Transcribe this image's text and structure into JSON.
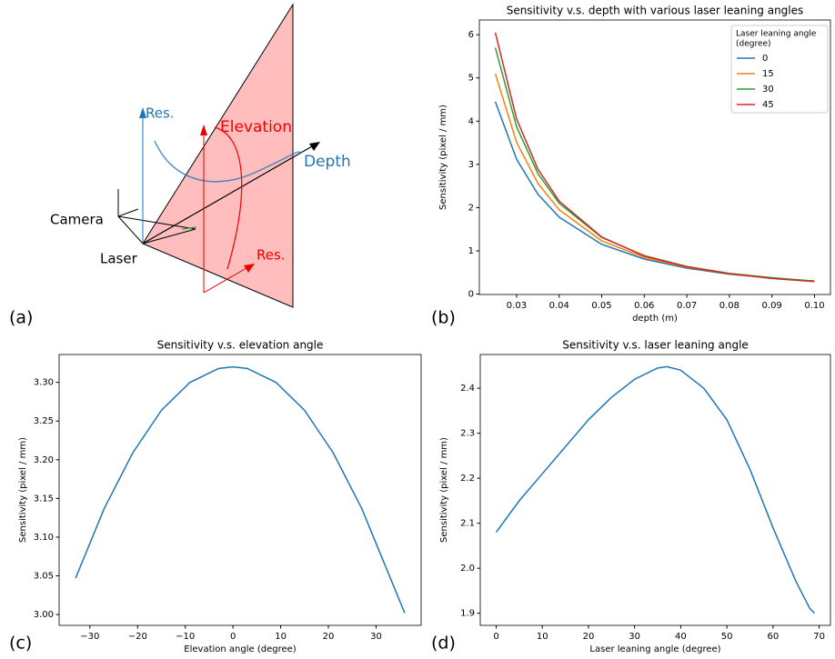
{
  "figure": {
    "panel_labels": [
      "(a)",
      "(b)",
      "(c)",
      "(d)"
    ],
    "diagram": {
      "res_blue": "Res.",
      "elevation": "Elevation",
      "depth": "Depth",
      "camera": "Camera",
      "laser": "Laser",
      "res_red": "Res."
    }
  },
  "chart_data": [
    {
      "type": "line",
      "title": "Sensitivity v.s. depth with various laser leaning angles",
      "xlabel": "depth (m)",
      "ylabel": "Sensitivity (pixel / mm)",
      "x": [
        0.025,
        0.03,
        0.035,
        0.04,
        0.05,
        0.06,
        0.07,
        0.08,
        0.09,
        0.1
      ],
      "series": [
        {
          "name": "0",
          "color": "#1f77b4",
          "values": [
            4.45,
            3.12,
            2.31,
            1.78,
            1.15,
            0.81,
            0.6,
            0.46,
            0.37,
            0.3
          ]
        },
        {
          "name": "15",
          "color": "#ff7f0e",
          "values": [
            5.1,
            3.51,
            2.56,
            1.95,
            1.23,
            0.85,
            0.62,
            0.47,
            0.37,
            0.3
          ]
        },
        {
          "name": "30",
          "color": "#2ca02c",
          "values": [
            5.7,
            3.87,
            2.79,
            2.1,
            1.31,
            0.89,
            0.64,
            0.48,
            0.38,
            0.3
          ]
        },
        {
          "name": "45",
          "color": "#d62728",
          "values": [
            6.05,
            4.05,
            2.89,
            2.15,
            1.32,
            0.88,
            0.63,
            0.47,
            0.36,
            0.29
          ]
        }
      ],
      "legend_title": [
        "Laser leaning angle",
        "(degree)"
      ],
      "legend": "upper right",
      "xlim": [
        0.02125,
        0.10375
      ],
      "ylim": [
        -0.01,
        6.34
      ],
      "xticks": [
        0.03,
        0.04,
        0.05,
        0.06,
        0.07,
        0.08,
        0.09,
        {
          "value": 0.1,
          "label": "0.10"
        }
      ],
      "yticks": [
        0,
        1,
        2,
        3,
        4,
        5,
        6
      ]
    },
    {
      "type": "line",
      "title": "Sensitivity v.s. elevation angle",
      "xlabel": "Elevation angle (degree)",
      "ylabel": "Sensitivity (pixel / mm)",
      "color": "#1f77b4",
      "x": [
        -33,
        -27,
        -21,
        -15,
        -9,
        -3,
        0,
        3,
        9,
        15,
        21,
        27,
        33,
        36
      ],
      "values": [
        3.047,
        3.137,
        3.209,
        3.264,
        3.3,
        3.318,
        3.32,
        3.318,
        3.3,
        3.264,
        3.209,
        3.137,
        3.047,
        3.002
      ],
      "xlim": [
        -36.45,
        39.45
      ],
      "ylim": [
        2.986,
        3.336
      ],
      "xticks": [
        {
          "value": -30,
          "label": "−30"
        },
        {
          "value": -20,
          "label": "−20"
        },
        {
          "value": -10,
          "label": "−10"
        },
        0,
        10,
        20,
        30
      ],
      "yticks": [
        {
          "value": 3,
          "label": "3.00"
        },
        3.05,
        {
          "value": 3.1,
          "label": "3.10"
        },
        3.15,
        {
          "value": 3.2,
          "label": "3.20"
        },
        3.25,
        {
          "value": 3.3,
          "label": "3.30"
        }
      ]
    },
    {
      "type": "line",
      "title": "Sensitivity v.s. laser leaning angle",
      "xlabel": "Laser leaning angle (degree)",
      "ylabel": "Sensitivity (pixel / mm)",
      "color": "#1f77b4",
      "x": [
        0,
        5,
        10,
        15,
        20,
        25,
        30,
        35,
        37,
        40,
        45,
        50,
        55,
        60,
        65,
        67,
        68,
        69
      ],
      "values": [
        2.08,
        2.15,
        2.21,
        2.27,
        2.33,
        2.38,
        2.42,
        2.445,
        2.448,
        2.44,
        2.4,
        2.33,
        2.22,
        2.09,
        1.97,
        1.93,
        1.91,
        1.9
      ],
      "xlim": [
        -3.45,
        72.45
      ],
      "ylim": [
        1.873,
        2.475
      ],
      "xticks": [
        0,
        10,
        20,
        30,
        40,
        50,
        60,
        70
      ],
      "yticks": [
        1.9,
        {
          "value": 2,
          "label": "2.0"
        },
        2.1,
        2.2,
        2.3,
        2.4
      ]
    }
  ]
}
